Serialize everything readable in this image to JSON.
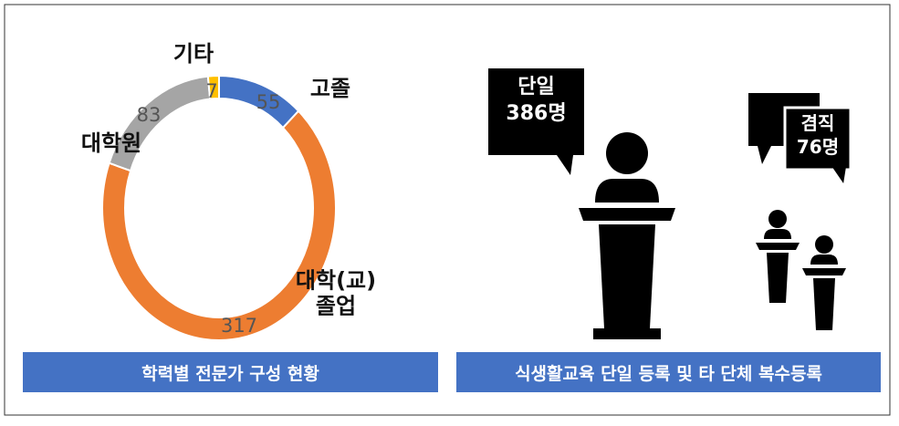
{
  "chart_data": {
    "type": "pie",
    "categories": [
      "고졸",
      "대학(교)\n졸업",
      "대학원",
      "기타"
    ],
    "values": [
      55,
      317,
      83,
      7
    ],
    "colors": [
      "#4472c4",
      "#ed7d31",
      "#a5a5a5",
      "#ffc000"
    ],
    "caption": "학력별 전문가 구성 현황"
  },
  "right_panel": {
    "single": {
      "label": "단일",
      "count": "386명"
    },
    "dual": {
      "label": "겸직",
      "count": "76명"
    },
    "caption": "식생활교육 단일 등록 및 타 단체 복수등록"
  }
}
